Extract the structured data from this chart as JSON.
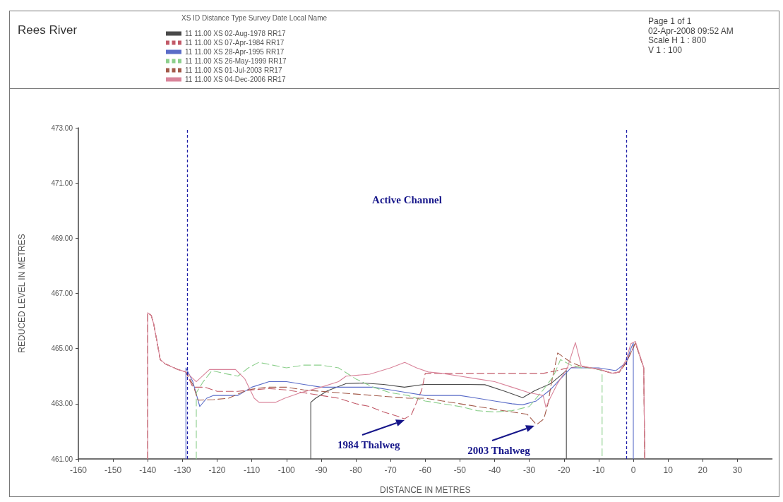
{
  "chart_data": {
    "type": "line",
    "title": "Rees River",
    "xlabel": "DISTANCE IN METRES",
    "ylabel": "REDUCED LEVEL IN METRES",
    "legend_title": "XS ID Distance Type Survey Date Local Name",
    "legend": "top left",
    "marker": "none",
    "xlim": [
      -160,
      40
    ],
    "xticks": [
      -160,
      -150,
      -140,
      -130,
      -120,
      -110,
      -100,
      -90,
      -80,
      -70,
      -60,
      -50,
      -40,
      -30,
      -20,
      -10,
      0,
      10,
      20,
      30
    ],
    "ylim": [
      461,
      473
    ],
    "yticks": [
      {
        "value": 461,
        "label": "461.00"
      },
      {
        "value": 463,
        "label": "463.00"
      },
      {
        "value": 465,
        "label": "465.00"
      },
      {
        "value": 467,
        "label": "467.00"
      },
      {
        "value": 469,
        "label": "469.00"
      },
      {
        "value": 471,
        "label": "471.00"
      },
      {
        "value": 473,
        "label": "473.00"
      }
    ],
    "series": [
      {
        "name": "11 11.00 XS 02-Aug-1978 RR17",
        "color": "#4a4a4a",
        "line_style": "solid",
        "x": [
          -93,
          -93,
          -91.6,
          -88.2,
          -82.8,
          -78,
          -72,
          -66,
          -60.4,
          -55,
          -48,
          -42.8,
          -37,
          -31.9,
          -28.5,
          -23.8,
          -19.3,
          -19.3
        ],
        "values": [
          461,
          463.05,
          463.2,
          463.47,
          463.73,
          463.75,
          463.7,
          463.6,
          463.7,
          463.7,
          463.7,
          463.69,
          463.45,
          463.22,
          463.47,
          463.73,
          464.2,
          461
        ]
      },
      {
        "name": "11 11.00 XS 07-Apr-1984 RR17",
        "color": "#c25a68",
        "line_style": "dashed",
        "x": [
          -140,
          -140,
          -139,
          -138.3,
          -137.4,
          -136.4,
          -135,
          -131.5,
          -129,
          -127,
          -123.5,
          -120,
          -114,
          -110,
          -105,
          -100,
          -95,
          -90,
          -85,
          -80,
          -76,
          -72,
          -68,
          -66,
          -64,
          -61,
          -60,
          -55,
          -50,
          -45,
          -40,
          -35,
          -30,
          -26,
          -22,
          -19,
          -15,
          -10,
          -6,
          -4,
          -2,
          0.6,
          3,
          3.3
        ],
        "values": [
          461,
          466.3,
          466.2,
          465.9,
          465.3,
          464.6,
          464.45,
          464.25,
          464.15,
          463.6,
          463.6,
          463.45,
          463.45,
          463.5,
          463.55,
          463.5,
          463.4,
          463.3,
          463.2,
          463.0,
          462.9,
          462.7,
          462.55,
          462.45,
          462.6,
          463.5,
          464.1,
          464.1,
          464.1,
          464.1,
          464.1,
          464.1,
          464.1,
          464.1,
          464.2,
          464.3,
          464.35,
          464.25,
          464.1,
          464.15,
          464.5,
          465.2,
          464.3,
          461
        ]
      },
      {
        "name": "11 11.00 XS 28-Apr-1995 RR17",
        "color": "#5a6cc8",
        "line_style": "solid",
        "x": [
          -129,
          -129,
          -127,
          -125,
          -123,
          -121,
          -118,
          -114,
          -110,
          -105,
          -100,
          -95,
          -90,
          -85,
          -80,
          -75,
          -70,
          -65,
          -60,
          -55,
          -50,
          -45,
          -40,
          -35,
          -31.9,
          -28,
          -24,
          -21,
          -18,
          -15,
          -10,
          -5,
          -2,
          -0.7,
          0,
          0
        ],
        "values": [
          461,
          464.3,
          463.8,
          462.9,
          463.2,
          463.3,
          463.3,
          463.3,
          463.6,
          463.8,
          463.8,
          463.7,
          463.6,
          463.6,
          463.6,
          463.6,
          463.5,
          463.4,
          463.3,
          463.3,
          463.3,
          463.2,
          463.1,
          463.0,
          462.96,
          463.1,
          463.5,
          463.9,
          464.3,
          464.3,
          464.3,
          464.2,
          464.5,
          465.0,
          465.2,
          461
        ]
      },
      {
        "name": "11 11.00 XS 26-May-1999 RR17",
        "color": "#8ccf8c",
        "line_style": "dashed",
        "x": [
          -126,
          -126,
          -124,
          -121.5,
          -118,
          -114,
          -111,
          -108,
          -104,
          -100,
          -95,
          -90,
          -85,
          -80,
          -75,
          -70,
          -65,
          -60,
          -55,
          -50,
          -45,
          -40,
          -35,
          -30,
          -26,
          -23,
          -21,
          -18,
          -15,
          -12,
          -9,
          -9
        ],
        "values": [
          461,
          463.4,
          463.8,
          464.2,
          464.1,
          464.0,
          464.3,
          464.5,
          464.4,
          464.3,
          464.4,
          464.4,
          464.3,
          463.9,
          463.6,
          463.4,
          463.3,
          463.1,
          463.0,
          462.9,
          462.75,
          462.7,
          462.75,
          462.9,
          463.5,
          464.0,
          464.6,
          464.4,
          464.3,
          464.3,
          464.2,
          461
        ]
      },
      {
        "name": "11 11.00 XS 01-Jul-2003 RR17",
        "color": "#a35a4a",
        "line_style": "dashed",
        "x": [
          -140,
          -140,
          -139,
          -138.3,
          -137.4,
          -136.4,
          -135,
          -131.5,
          -129,
          -127,
          -125.5,
          -121,
          -116.7,
          -111.3,
          -106,
          -100,
          -95,
          -90,
          -85,
          -80,
          -75,
          -70,
          -65,
          -60,
          -55,
          -50,
          -45,
          -40,
          -35,
          -30.6,
          -27.9,
          -25.8,
          -24.5,
          -23.8,
          -21.8,
          -18,
          -15,
          -10,
          -6,
          -4,
          -2,
          0.6,
          3,
          3.3
        ],
        "values": [
          461,
          466.3,
          466.2,
          465.9,
          465.3,
          464.6,
          464.45,
          464.25,
          464.15,
          463.7,
          463.13,
          463.15,
          463.2,
          463.5,
          463.6,
          463.6,
          463.5,
          463.45,
          463.4,
          463.35,
          463.3,
          463.25,
          463.2,
          463.2,
          463.1,
          463.0,
          462.9,
          462.8,
          462.7,
          462.62,
          462.24,
          462.45,
          463.05,
          463.64,
          464.84,
          464.5,
          464.35,
          464.25,
          464.1,
          464.15,
          464.5,
          465.2,
          464.3,
          461
        ]
      },
      {
        "name": "11 11.00 XS 04-Dec-2006 RR17",
        "color": "#d9849a",
        "line_style": "solid",
        "x": [
          -140,
          -140,
          -139,
          -138.3,
          -137.4,
          -136.4,
          -135,
          -131.5,
          -129,
          -126,
          -122.2,
          -114.7,
          -112,
          -109.3,
          -107.9,
          -103.2,
          -100.5,
          -96,
          -90,
          -85,
          -82.8,
          -76,
          -70,
          -65.9,
          -62.5,
          -59.1,
          -55,
          -50,
          -45,
          -40,
          -35,
          -30,
          -26,
          -25.2,
          -24,
          -22,
          -19,
          -16.7,
          -15,
          -9.6,
          -6.1,
          -4.1,
          -2.1,
          -0.7,
          0.6,
          3,
          3.3
        ],
        "values": [
          461,
          466.3,
          466.2,
          465.9,
          465.3,
          464.6,
          464.45,
          464.25,
          464.15,
          463.8,
          464.24,
          464.24,
          463.9,
          463.2,
          463.05,
          463.05,
          463.2,
          463.4,
          463.6,
          463.8,
          464.0,
          464.07,
          464.3,
          464.5,
          464.3,
          464.15,
          464.1,
          464.0,
          463.9,
          463.8,
          463.6,
          463.4,
          463.3,
          462.87,
          463.2,
          463.7,
          464.3,
          465.22,
          464.37,
          464.24,
          464.11,
          464.15,
          464.58,
          465.18,
          465.26,
          464.32,
          461
        ]
      }
    ],
    "ref_lines": [
      {
        "axis": "x",
        "value": -128.5,
        "color": "#1f1fa8",
        "line_style": "dashed"
      },
      {
        "axis": "x",
        "value": -2,
        "color": "#1f1fa8",
        "line_style": "dashed"
      }
    ],
    "annotations": [
      "Page 1 of 1",
      "02-Apr-2008 09:52 AM",
      "Scale H 1 : 800",
      "V 1 : 100",
      "Active Channel",
      {
        "text": "1984 Thalweg",
        "x": -65.5,
        "y": 462.45
      },
      {
        "text": "2003 Thalweg",
        "x": -28,
        "y": 462.25
      }
    ]
  }
}
